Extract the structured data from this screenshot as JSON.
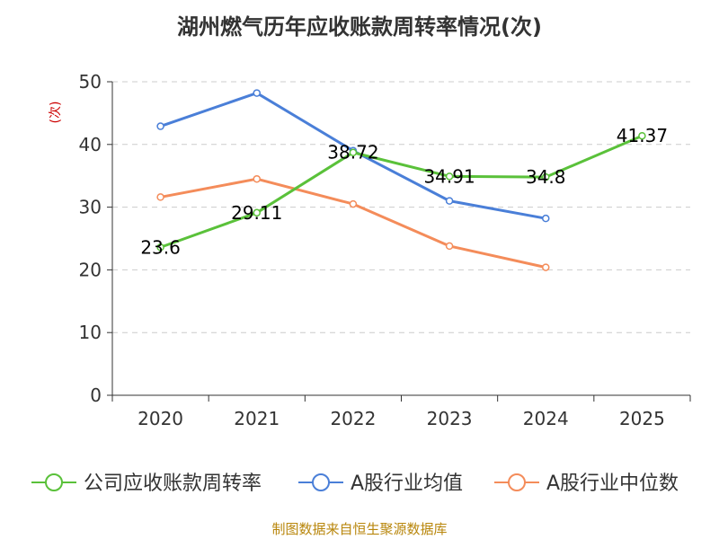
{
  "chart_data": {
    "type": "line",
    "title": "湖州燃气历年应收账款周转率情况(次)",
    "ylabel": "(次)",
    "xlabel": "",
    "ylim": [
      0,
      50
    ],
    "yticks": [
      0,
      10,
      20,
      30,
      40,
      50
    ],
    "categories": [
      "2020",
      "2021",
      "2022",
      "2023",
      "2024",
      "2025"
    ],
    "grid": true,
    "legend_position": "bottom",
    "series": [
      {
        "name": "公司应收账款周转率",
        "color": "#5ac13a",
        "values": [
          23.6,
          29.11,
          38.72,
          34.91,
          34.8,
          41.37
        ],
        "labels": [
          "23.6",
          "29.11",
          "38.72",
          "34.91",
          "34.8",
          "41.37"
        ]
      },
      {
        "name": "A股行业均值",
        "color": "#4a7fd8",
        "values": [
          42.9,
          48.2,
          39.0,
          31.0,
          28.2,
          null
        ]
      },
      {
        "name": "A股行业中位数",
        "color": "#f48c5a",
        "values": [
          31.6,
          34.5,
          30.5,
          23.8,
          20.4,
          null
        ]
      }
    ]
  },
  "footer": {
    "source": "制图数据来自恒生聚源数据库"
  }
}
